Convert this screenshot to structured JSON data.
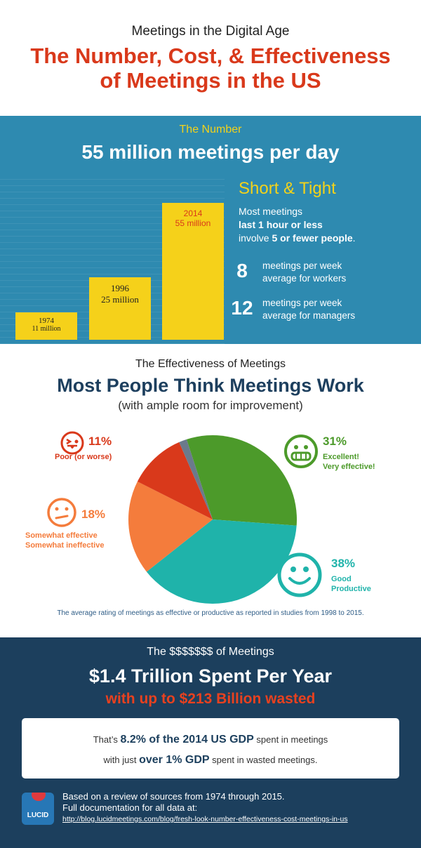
{
  "header": {
    "kicker": "Meetings in the Digital Age",
    "headline_line1": "The Number, Cost, & Effectiveness",
    "headline_line2": "of Meetings in the US"
  },
  "number_section": {
    "label": "The Number",
    "headline": "55 million meetings per day",
    "short_title": "Short & Tight",
    "short_line1": "Most meetings",
    "short_line2": "last 1 hour or less",
    "short_line3_a": "involve ",
    "short_line3_b": "5 or fewer people",
    "short_line3_c": ".",
    "stats": [
      {
        "number": "8",
        "line1": "meetings per week",
        "line2": "average for workers"
      },
      {
        "number": "12",
        "line1": "meetings per week",
        "line2": "average for managers"
      }
    ],
    "colors": {
      "background": "#2e8ab0",
      "bar": "#f5d11a",
      "accent": "#f3d21a",
      "highlight": "#d9391b"
    }
  },
  "chart_data": {
    "type": "bar",
    "categories": [
      "1974",
      "1996",
      "2014"
    ],
    "values": [
      11,
      25,
      55
    ],
    "value_labels": [
      "11 million",
      "25 million",
      "55 million"
    ],
    "title": "",
    "xlabel": "",
    "ylabel": ""
  },
  "effectiveness": {
    "kicker": "The Effectiveness of Meetings",
    "title": "Most People Think Meetings Work",
    "subtitle": "(with ample room for improvement)",
    "footnote": "The average rating of  meetings as effective or productive as reported in studies from 1998 to 2015.",
    "pie": [
      {
        "pct": "31%",
        "value": 31,
        "line1": "Excellent!",
        "line2": "Very effective!",
        "color": "#4c9a2a",
        "icon": "grinning-face-icon"
      },
      {
        "pct": "38%",
        "value": 38,
        "line1": "Good",
        "line2": "Productive",
        "color": "#1fb3aa",
        "icon": "smiling-face-icon"
      },
      {
        "pct": "18%",
        "value": 18,
        "line1": "Somewhat effective",
        "line2": "Somewhat ineffective",
        "color": "#f47c3c",
        "icon": "neutral-face-icon"
      },
      {
        "pct": "11%",
        "value": 11,
        "line1": "Poor (or worse)",
        "line2": "",
        "color": "#d9391b",
        "icon": "tongue-out-face-icon"
      },
      {
        "pct": "",
        "value": 1.5,
        "line1": "",
        "line2": "",
        "color": "#6b7a8c",
        "icon": ""
      }
    ]
  },
  "cost": {
    "kicker": "The $$$$$$$ of Meetings",
    "title": "$1.4 Trillion Spent Per Year",
    "subtitle": "with up to $213 Billion wasted",
    "box_line1_a": "That’s ",
    "box_line1_b": "8.2% of the 2014 US GDP",
    "box_line1_c": " spent in meetings",
    "box_line2_a": "with just ",
    "box_line2_b": "over 1% GDP",
    "box_line2_c": " spent in wasted meetings.",
    "logo_text": "LUCID",
    "sources_line1": "Based on a review of sources from 1974 through 2015.",
    "sources_line2": "Full documentation for all data at:",
    "url": "http://blog.lucidmeetings.com/blog/fresh-look-number-effectiveness-cost-meetings-in-us"
  }
}
